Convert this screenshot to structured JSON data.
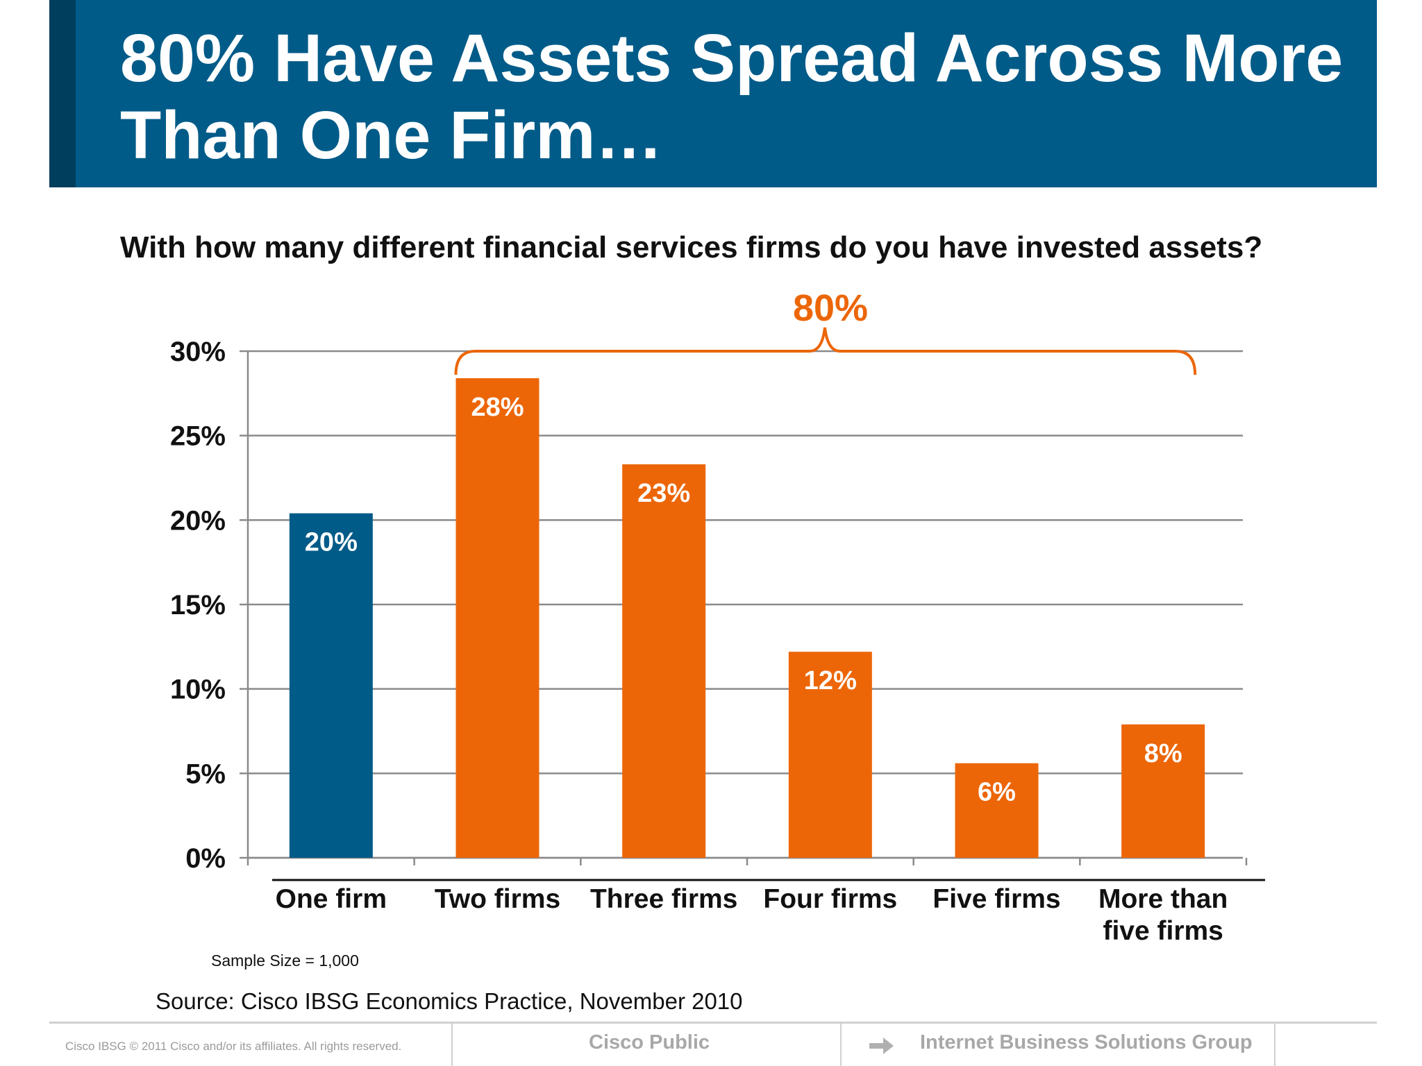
{
  "header": {
    "title": "80% Have Assets Spread Across More Than One Firm…"
  },
  "chart_data": {
    "type": "bar",
    "title": "With how many different financial services firms do you have invested assets?",
    "categories": [
      "One firm",
      "Two firms",
      "Three firms",
      "Four firms",
      "Five firms",
      "More than five firms"
    ],
    "values": [
      20.4,
      28.4,
      23.3,
      12.2,
      5.6,
      7.9
    ],
    "value_labels": [
      "20%",
      "28%",
      "23%",
      "12%",
      "6%",
      "8%"
    ],
    "yticks": [
      "0%",
      "5%",
      "10%",
      "15%",
      "20%",
      "25%",
      "30%"
    ],
    "ylim": [
      0,
      30
    ],
    "grid": true,
    "colors": {
      "one_firm": "#005b88",
      "multiple_firms": "#ec6608",
      "label_text": "#ffffff"
    },
    "annotation": {
      "text": "80%",
      "spans": [
        "Two firms",
        "More than five firms"
      ],
      "color": "#ec6608"
    }
  },
  "notes": {
    "sample_size": "Sample Size = 1,000",
    "source": "Source: Cisco IBSG Economics Practice, November 2010"
  },
  "footer": {
    "copyright": "Cisco IBSG © 2011 Cisco and/or its affiliates. All rights reserved.",
    "classification": "Cisco Public",
    "group": "Internet Business Solutions Group",
    "arrow_icon": "arrow-right-icon"
  }
}
